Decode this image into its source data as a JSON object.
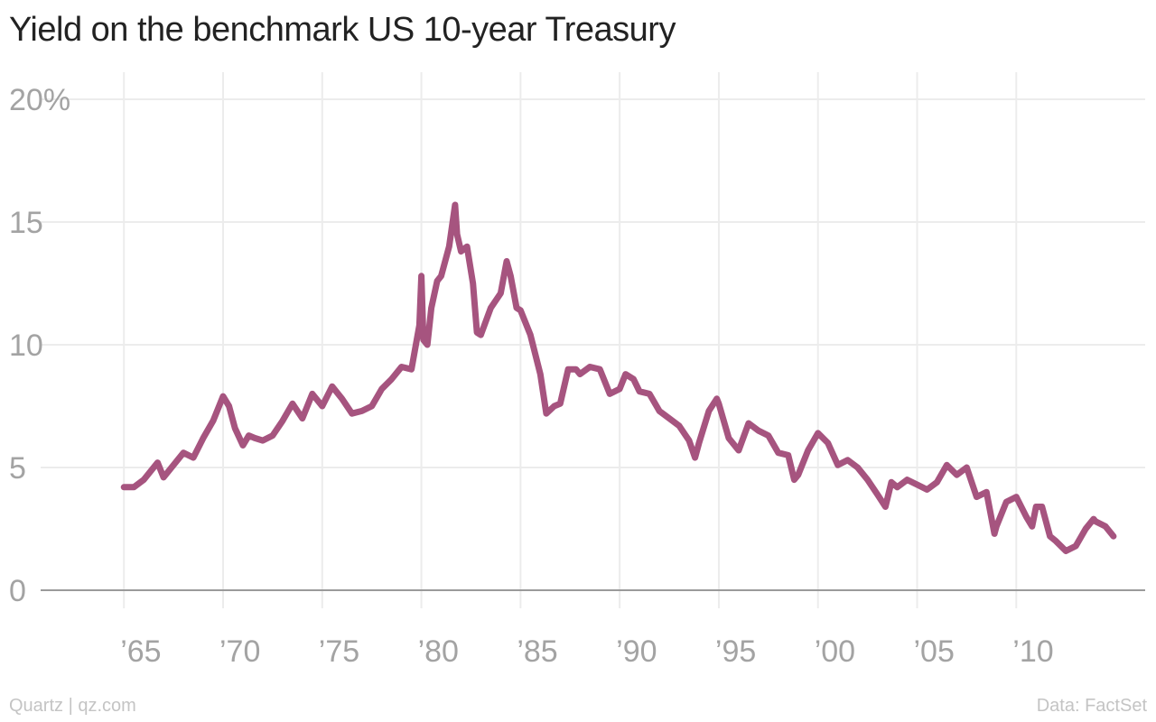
{
  "title": "Yield on the benchmark US 10-year Treasury",
  "footer": {
    "source_left": "Quartz | qz.com",
    "source_right": "Data: FactSet"
  },
  "colors": {
    "line": "#a6547f",
    "grid": "#ececec",
    "baseline": "#9a9a9a",
    "tick_text": "#a3a3a3",
    "title": "#222222"
  },
  "chart_data": {
    "type": "line",
    "title": "Yield on the benchmark US 10-year Treasury",
    "xlabel": "",
    "ylabel": "",
    "xlim": [
      1960.8,
      2016.5
    ],
    "ylim": [
      0,
      20
    ],
    "yticks": [
      0,
      5,
      10,
      15,
      20
    ],
    "ytick_labels": [
      "0",
      "5",
      "10",
      "15",
      "20%"
    ],
    "xticks": [
      1965,
      1970,
      1975,
      1980,
      1985,
      1990,
      1995,
      2000,
      2005,
      2010
    ],
    "xtick_labels": [
      "’65",
      "’70",
      "’75",
      "’80",
      "’85",
      "’90",
      "’95",
      "’00",
      "’05",
      "’10"
    ],
    "grid": true,
    "series": [
      {
        "x": [
          1965.0,
          1965.5,
          1966.0,
          1966.7,
          1967.0,
          1967.5,
          1968.0,
          1968.5,
          1969.0,
          1969.5,
          1970.0,
          1970.3,
          1970.6,
          1971.0,
          1971.3,
          1971.6,
          1972.0,
          1972.5,
          1973.0,
          1973.5,
          1974.0,
          1974.5,
          1975.0,
          1975.5,
          1976.0,
          1976.5,
          1977.0,
          1977.5,
          1978.0,
          1978.5,
          1979.0,
          1979.5,
          1979.9,
          1980.0,
          1980.1,
          1980.3,
          1980.5,
          1980.8,
          1981.0,
          1981.4,
          1981.7,
          1981.8,
          1982.0,
          1982.3,
          1982.6,
          1982.8,
          1983.0,
          1983.5,
          1984.0,
          1984.3,
          1984.5,
          1984.8,
          1985.0,
          1985.5,
          1986.0,
          1986.3,
          1986.7,
          1987.0,
          1987.4,
          1987.8,
          1988.0,
          1988.5,
          1989.0,
          1989.5,
          1990.0,
          1990.3,
          1990.7,
          1991.0,
          1991.5,
          1992.0,
          1992.5,
          1993.0,
          1993.5,
          1993.8,
          1994.0,
          1994.5,
          1994.9,
          1995.0,
          1995.5,
          1996.0,
          1996.5,
          1997.0,
          1997.5,
          1998.0,
          1998.5,
          1998.8,
          1999.0,
          1999.5,
          2000.0,
          2000.5,
          2001.0,
          2001.5,
          2002.0,
          2002.5,
          2003.0,
          2003.4,
          2003.7,
          2004.0,
          2004.5,
          2005.0,
          2005.5,
          2006.0,
          2006.5,
          2007.0,
          2007.5,
          2008.0,
          2008.5,
          2008.9,
          2009.0,
          2009.5,
          2010.0,
          2010.5,
          2010.8,
          2011.0,
          2011.3,
          2011.7,
          2012.0,
          2012.5,
          2013.0,
          2013.5,
          2013.9,
          2014.0,
          2014.5,
          2014.9
        ],
        "values": [
          4.2,
          4.2,
          4.5,
          5.2,
          4.6,
          5.1,
          5.6,
          5.4,
          6.2,
          6.9,
          7.9,
          7.5,
          6.6,
          5.9,
          6.3,
          6.2,
          6.1,
          6.3,
          6.9,
          7.6,
          7.0,
          8.0,
          7.5,
          8.3,
          7.8,
          7.2,
          7.3,
          7.5,
          8.2,
          8.6,
          9.1,
          9.0,
          10.8,
          12.8,
          10.2,
          10.0,
          11.5,
          12.6,
          12.8,
          14.0,
          15.7,
          14.5,
          13.8,
          14.0,
          12.5,
          10.5,
          10.4,
          11.5,
          12.1,
          13.4,
          12.8,
          11.5,
          11.4,
          10.4,
          8.8,
          7.2,
          7.5,
          7.6,
          9.0,
          9.0,
          8.8,
          9.1,
          9.0,
          8.0,
          8.2,
          8.8,
          8.6,
          8.1,
          8.0,
          7.3,
          7.0,
          6.7,
          6.1,
          5.4,
          6.0,
          7.3,
          7.8,
          7.6,
          6.2,
          5.7,
          6.8,
          6.5,
          6.3,
          5.6,
          5.5,
          4.5,
          4.7,
          5.7,
          6.4,
          6.0,
          5.1,
          5.3,
          5.0,
          4.5,
          3.9,
          3.4,
          4.4,
          4.2,
          4.5,
          4.3,
          4.1,
          4.4,
          5.1,
          4.7,
          5.0,
          3.8,
          4.0,
          2.3,
          2.6,
          3.6,
          3.8,
          3.0,
          2.6,
          3.4,
          3.4,
          2.2,
          2.0,
          1.6,
          1.8,
          2.5,
          2.9,
          2.8,
          2.6,
          2.2
        ],
        "color": "#a6547f"
      }
    ]
  }
}
